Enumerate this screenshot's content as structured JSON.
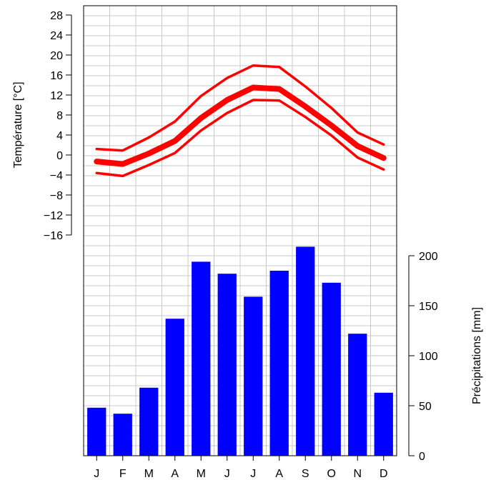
{
  "chart_data": {
    "type": "climate-diagram",
    "categories": [
      "J",
      "F",
      "M",
      "A",
      "M",
      "J",
      "J",
      "A",
      "S",
      "O",
      "N",
      "D"
    ],
    "temperature": {
      "ylabel": "Température [°C]",
      "yticks": [
        28,
        24,
        20,
        16,
        12,
        8,
        4,
        0,
        -4,
        -8,
        -12,
        -16
      ],
      "ylim": [
        -16,
        28
      ],
      "color": "#ff0000",
      "series": [
        {
          "values": [
            1.2,
            0.9,
            3.5,
            6.7,
            11.8,
            15.4,
            17.9,
            17.6,
            13.7,
            9.4,
            4.5,
            2.1
          ],
          "line": "max"
        },
        {
          "values": [
            -1.3,
            -1.8,
            0.3,
            2.8,
            7.4,
            11.0,
            13.5,
            13.2,
            9.7,
            5.9,
            1.8,
            -0.6
          ],
          "line": "mean"
        },
        {
          "values": [
            -3.6,
            -4.2,
            -2.0,
            0.4,
            4.9,
            8.4,
            11.0,
            10.9,
            7.6,
            3.9,
            -0.5,
            -2.9
          ],
          "line": "min"
        }
      ]
    },
    "precipitation": {
      "ylabel": "Précipitations [mm]",
      "yticks": [
        0,
        50,
        100,
        150,
        200
      ],
      "ylim": [
        0,
        210
      ],
      "color": "#0000ff",
      "values": [
        48,
        42,
        68,
        137,
        194,
        182,
        159,
        185,
        209,
        173,
        122,
        63
      ]
    },
    "grid": true
  }
}
